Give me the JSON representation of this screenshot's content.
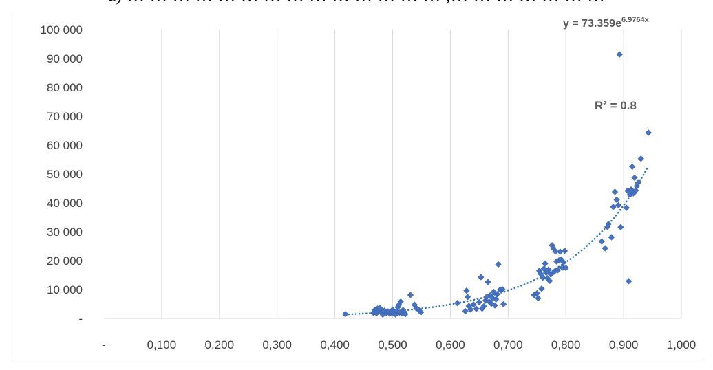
{
  "caption_fragment": "a) … … … … … … … … … … … … … … ,… … … … … … …",
  "chart_data": {
    "type": "scatter",
    "title": "",
    "xlabel": "",
    "ylabel": "",
    "xlim": [
      0,
      1
    ],
    "ylim": [
      0,
      100000
    ],
    "grid": "vertical",
    "x_tick_values": [
      0,
      0.1,
      0.2,
      0.3,
      0.4,
      0.5,
      0.6,
      0.7,
      0.8,
      0.9,
      1.0
    ],
    "x_tick_labels": [
      "-",
      "0,100",
      "0,200",
      "0,300",
      "0,400",
      "0,500",
      "0,600",
      "0,700",
      "0,800",
      "0,900",
      "1,000"
    ],
    "y_tick_values": [
      0,
      10000,
      20000,
      30000,
      40000,
      50000,
      60000,
      70000,
      80000,
      90000,
      100000
    ],
    "y_tick_labels": [
      "-",
      "10 000",
      "20 000",
      "30 000",
      "40 000",
      "50 000",
      "60 000",
      "70 000",
      "80 000",
      "90 000",
      "100 000"
    ],
    "marker_color": "#4472c4",
    "trendline": {
      "type": "exponential",
      "a": 73.359,
      "b": 6.9764,
      "x_range": [
        0.418,
        0.943
      ],
      "color": "#2e75b6",
      "style": "dotted",
      "equation_label": "y = 73.359e",
      "equation_exponent": "6.9764x",
      "r2_label": "R² = 0.8"
    },
    "points": [
      [
        0.418,
        1500
      ],
      [
        0.467,
        1900
      ],
      [
        0.469,
        2900
      ],
      [
        0.472,
        1800
      ],
      [
        0.474,
        3400
      ],
      [
        0.476,
        2500
      ],
      [
        0.478,
        3600
      ],
      [
        0.481,
        2200
      ],
      [
        0.483,
        1300
      ],
      [
        0.486,
        2700
      ],
      [
        0.489,
        1900
      ],
      [
        0.492,
        2400
      ],
      [
        0.495,
        1600
      ],
      [
        0.498,
        2100
      ],
      [
        0.5,
        3000
      ],
      [
        0.502,
        1700
      ],
      [
        0.505,
        1400
      ],
      [
        0.507,
        2600
      ],
      [
        0.509,
        3900
      ],
      [
        0.511,
        4700
      ],
      [
        0.512,
        2000
      ],
      [
        0.514,
        5800
      ],
      [
        0.516,
        1800
      ],
      [
        0.518,
        2900
      ],
      [
        0.52,
        2200
      ],
      [
        0.522,
        1500
      ],
      [
        0.531,
        8100
      ],
      [
        0.538,
        4700
      ],
      [
        0.541,
        3500
      ],
      [
        0.546,
        2800
      ],
      [
        0.549,
        2100
      ],
      [
        0.612,
        5300
      ],
      [
        0.626,
        2500
      ],
      [
        0.628,
        9600
      ],
      [
        0.63,
        7400
      ],
      [
        0.632,
        4300
      ],
      [
        0.635,
        3100
      ],
      [
        0.64,
        4800
      ],
      [
        0.645,
        3300
      ],
      [
        0.65,
        5600
      ],
      [
        0.653,
        14300
      ],
      [
        0.655,
        3400
      ],
      [
        0.658,
        4200
      ],
      [
        0.661,
        6200
      ],
      [
        0.663,
        7500
      ],
      [
        0.665,
        12600
      ],
      [
        0.667,
        5800
      ],
      [
        0.669,
        8000
      ],
      [
        0.671,
        5100
      ],
      [
        0.673,
        7000
      ],
      [
        0.675,
        9200
      ],
      [
        0.677,
        4500
      ],
      [
        0.679,
        6600
      ],
      [
        0.681,
        8400
      ],
      [
        0.683,
        18700
      ],
      [
        0.686,
        9900
      ],
      [
        0.69,
        10100
      ],
      [
        0.692,
        4900
      ],
      [
        0.745,
        8100
      ],
      [
        0.75,
        8700
      ],
      [
        0.752,
        7000
      ],
      [
        0.754,
        16500
      ],
      [
        0.756,
        15500
      ],
      [
        0.758,
        10300
      ],
      [
        0.76,
        14100
      ],
      [
        0.762,
        17200
      ],
      [
        0.764,
        19000
      ],
      [
        0.766,
        15800
      ],
      [
        0.768,
        13900
      ],
      [
        0.77,
        16900
      ],
      [
        0.772,
        13000
      ],
      [
        0.774,
        15200
      ],
      [
        0.776,
        25300
      ],
      [
        0.778,
        24400
      ],
      [
        0.78,
        16200
      ],
      [
        0.782,
        23200
      ],
      [
        0.784,
        19700
      ],
      [
        0.786,
        16700
      ],
      [
        0.788,
        20100
      ],
      [
        0.79,
        23100
      ],
      [
        0.792,
        20400
      ],
      [
        0.794,
        17600
      ],
      [
        0.796,
        19400
      ],
      [
        0.798,
        23400
      ],
      [
        0.8,
        17500
      ],
      [
        0.862,
        26600
      ],
      [
        0.868,
        24300
      ],
      [
        0.872,
        31700
      ],
      [
        0.874,
        32700
      ],
      [
        0.879,
        28100
      ],
      [
        0.882,
        38600
      ],
      [
        0.885,
        43800
      ],
      [
        0.888,
        41100
      ],
      [
        0.891,
        39200
      ],
      [
        0.893,
        91400
      ],
      [
        0.895,
        31600
      ],
      [
        0.905,
        38300
      ],
      [
        0.907,
        44200
      ],
      [
        0.909,
        12900
      ],
      [
        0.911,
        42800
      ],
      [
        0.913,
        44600
      ],
      [
        0.915,
        52500
      ],
      [
        0.917,
        43300
      ],
      [
        0.919,
        48700
      ],
      [
        0.921,
        44300
      ],
      [
        0.923,
        45800
      ],
      [
        0.925,
        46900
      ],
      [
        0.93,
        55300
      ],
      [
        0.943,
        64300
      ]
    ]
  }
}
